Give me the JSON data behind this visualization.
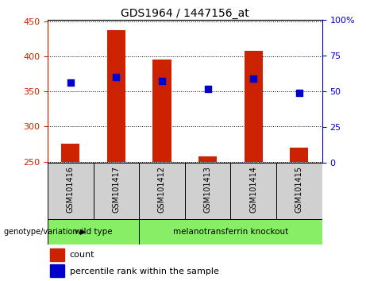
{
  "title": "GDS1964 / 1447156_at",
  "samples": [
    "GSM101416",
    "GSM101417",
    "GSM101412",
    "GSM101413",
    "GSM101414",
    "GSM101415"
  ],
  "bar_bottoms": [
    250,
    250,
    250,
    250,
    250,
    250
  ],
  "bar_tops": [
    275,
    437,
    395,
    257,
    408,
    270
  ],
  "percentile_values": [
    362,
    370,
    365,
    353,
    368,
    348
  ],
  "ylim_left": [
    248,
    452
  ],
  "ylim_right": [
    0,
    100
  ],
  "yticks_left": [
    250,
    300,
    350,
    400,
    450
  ],
  "yticks_right": [
    0,
    25,
    50,
    75,
    100
  ],
  "bar_color": "#cc2200",
  "dot_color": "#0000cc",
  "group1_label": "wild type",
  "group1_count": 2,
  "group2_label": "melanotransferrin knockout",
  "group2_count": 4,
  "group_color": "#88ee66",
  "sample_bg_color": "#d0d0d0",
  "group_label_text": "genotype/variation",
  "legend_count_label": "count",
  "legend_pct_label": "percentile rank within the sample",
  "background_color": "#ffffff",
  "axis_left_color": "#cc2200",
  "axis_right_color": "#0000cc",
  "bar_width": 0.4
}
